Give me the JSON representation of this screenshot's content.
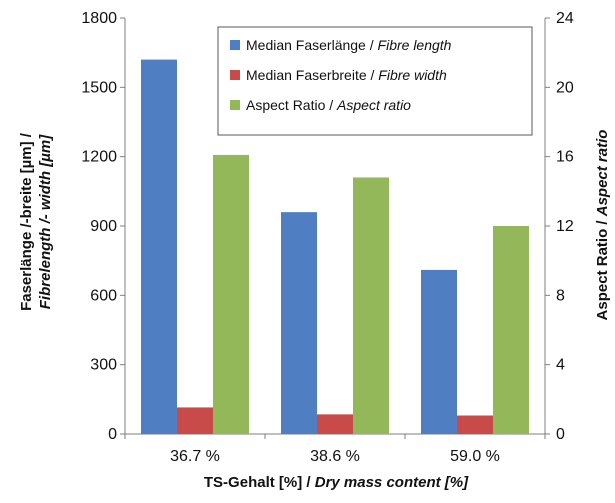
{
  "chart_data": {
    "type": "bar",
    "categories": [
      "36.7 %",
      "38.6 %",
      "59.0 %"
    ],
    "series": [
      {
        "name": "Median Faserlänge / Fibre length",
        "name_plain": "Median Faserlänge / ",
        "name_italic": "Fibre length",
        "axis": "left",
        "values": [
          1620,
          960,
          710
        ],
        "color": "#4f7fc2"
      },
      {
        "name": "Median Faserbreite / Fibre width",
        "name_plain": "Median Faserbreite / ",
        "name_italic": "Fibre width",
        "axis": "left",
        "values": [
          115,
          85,
          80
        ],
        "color": "#c94b49"
      },
      {
        "name": "Aspect Ratio / Aspect ratio",
        "name_plain": "Aspect Ratio / ",
        "name_italic": "Aspect ratio",
        "axis": "right",
        "values": [
          16.1,
          14.8,
          12.0
        ],
        "color": "#93b85a"
      }
    ],
    "xlabel": "TS-Gehalt [%] / Dry mass content [%]",
    "xlabel_plain": "TS-Gehalt [%]  / ",
    "xlabel_italic": "Dry mass content [%]",
    "ylabel": "Faserlänge /-breite [µm] / Fibrelength /- width [µm]",
    "ylabel_line1": "Faserlänge /-breite [µm] /",
    "ylabel_line2": "Fibrelength /- width [µm]",
    "y2label": "Aspect Ratio / Aspect ratio",
    "y2label_plain": "Aspect Ratio  / ",
    "y2label_italic": "Aspect  ratio",
    "ylim": [
      0,
      1800
    ],
    "yticks": [
      "0",
      "300",
      "600",
      "900",
      "1200",
      "1500",
      "1800"
    ],
    "y2lim": [
      0,
      24
    ],
    "y2ticks": [
      "0",
      "4",
      "8",
      "12",
      "16",
      "20",
      "24"
    ],
    "grid": false,
    "legend_position": "top-right"
  }
}
